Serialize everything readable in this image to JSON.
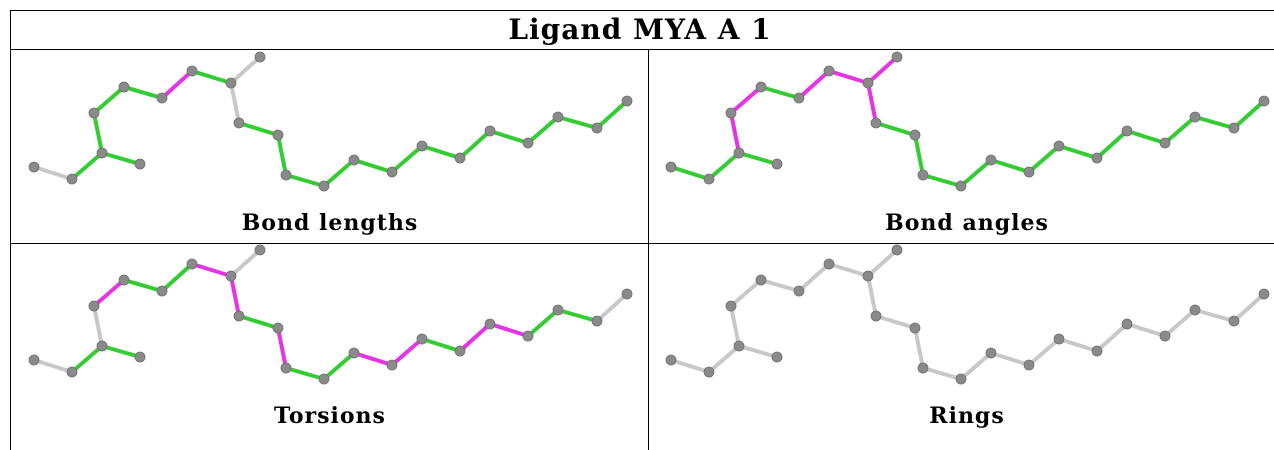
{
  "title": "Ligand MYA A 1",
  "colors": {
    "ok": "#33cc33",
    "outlier": "#e633e6",
    "neutral": "#c8c8c8",
    "atom": "#8a8a8a"
  },
  "panels": [
    {
      "label": "Bond lengths",
      "bonds": [
        "n",
        "g",
        "g",
        "g",
        "g",
        "g",
        "m",
        "g",
        "n",
        "n",
        "g",
        "g",
        "g",
        "g",
        "g",
        "g",
        "g",
        "g",
        "g",
        "g",
        "g",
        "g"
      ]
    },
    {
      "label": "Bond angles",
      "bonds": [
        "g",
        "g",
        "g",
        "m",
        "m",
        "g",
        "m",
        "m",
        "m",
        "m",
        "g",
        "g",
        "g",
        "g",
        "g",
        "g",
        "g",
        "g",
        "g",
        "g",
        "g",
        "g"
      ]
    },
    {
      "label": "Torsions",
      "bonds": [
        "n",
        "g",
        "g",
        "n",
        "m",
        "g",
        "g",
        "m",
        "n",
        "m",
        "g",
        "m",
        "g",
        "g",
        "m",
        "m",
        "g",
        "m",
        "m",
        "g",
        "g",
        "n"
      ]
    },
    {
      "label": "Rings",
      "bonds": [
        "n",
        "n",
        "n",
        "n",
        "n",
        "n",
        "n",
        "n",
        "n",
        "n",
        "n",
        "n",
        "n",
        "n",
        "n",
        "n",
        "n",
        "n",
        "n",
        "n",
        "n",
        "n"
      ]
    }
  ]
}
